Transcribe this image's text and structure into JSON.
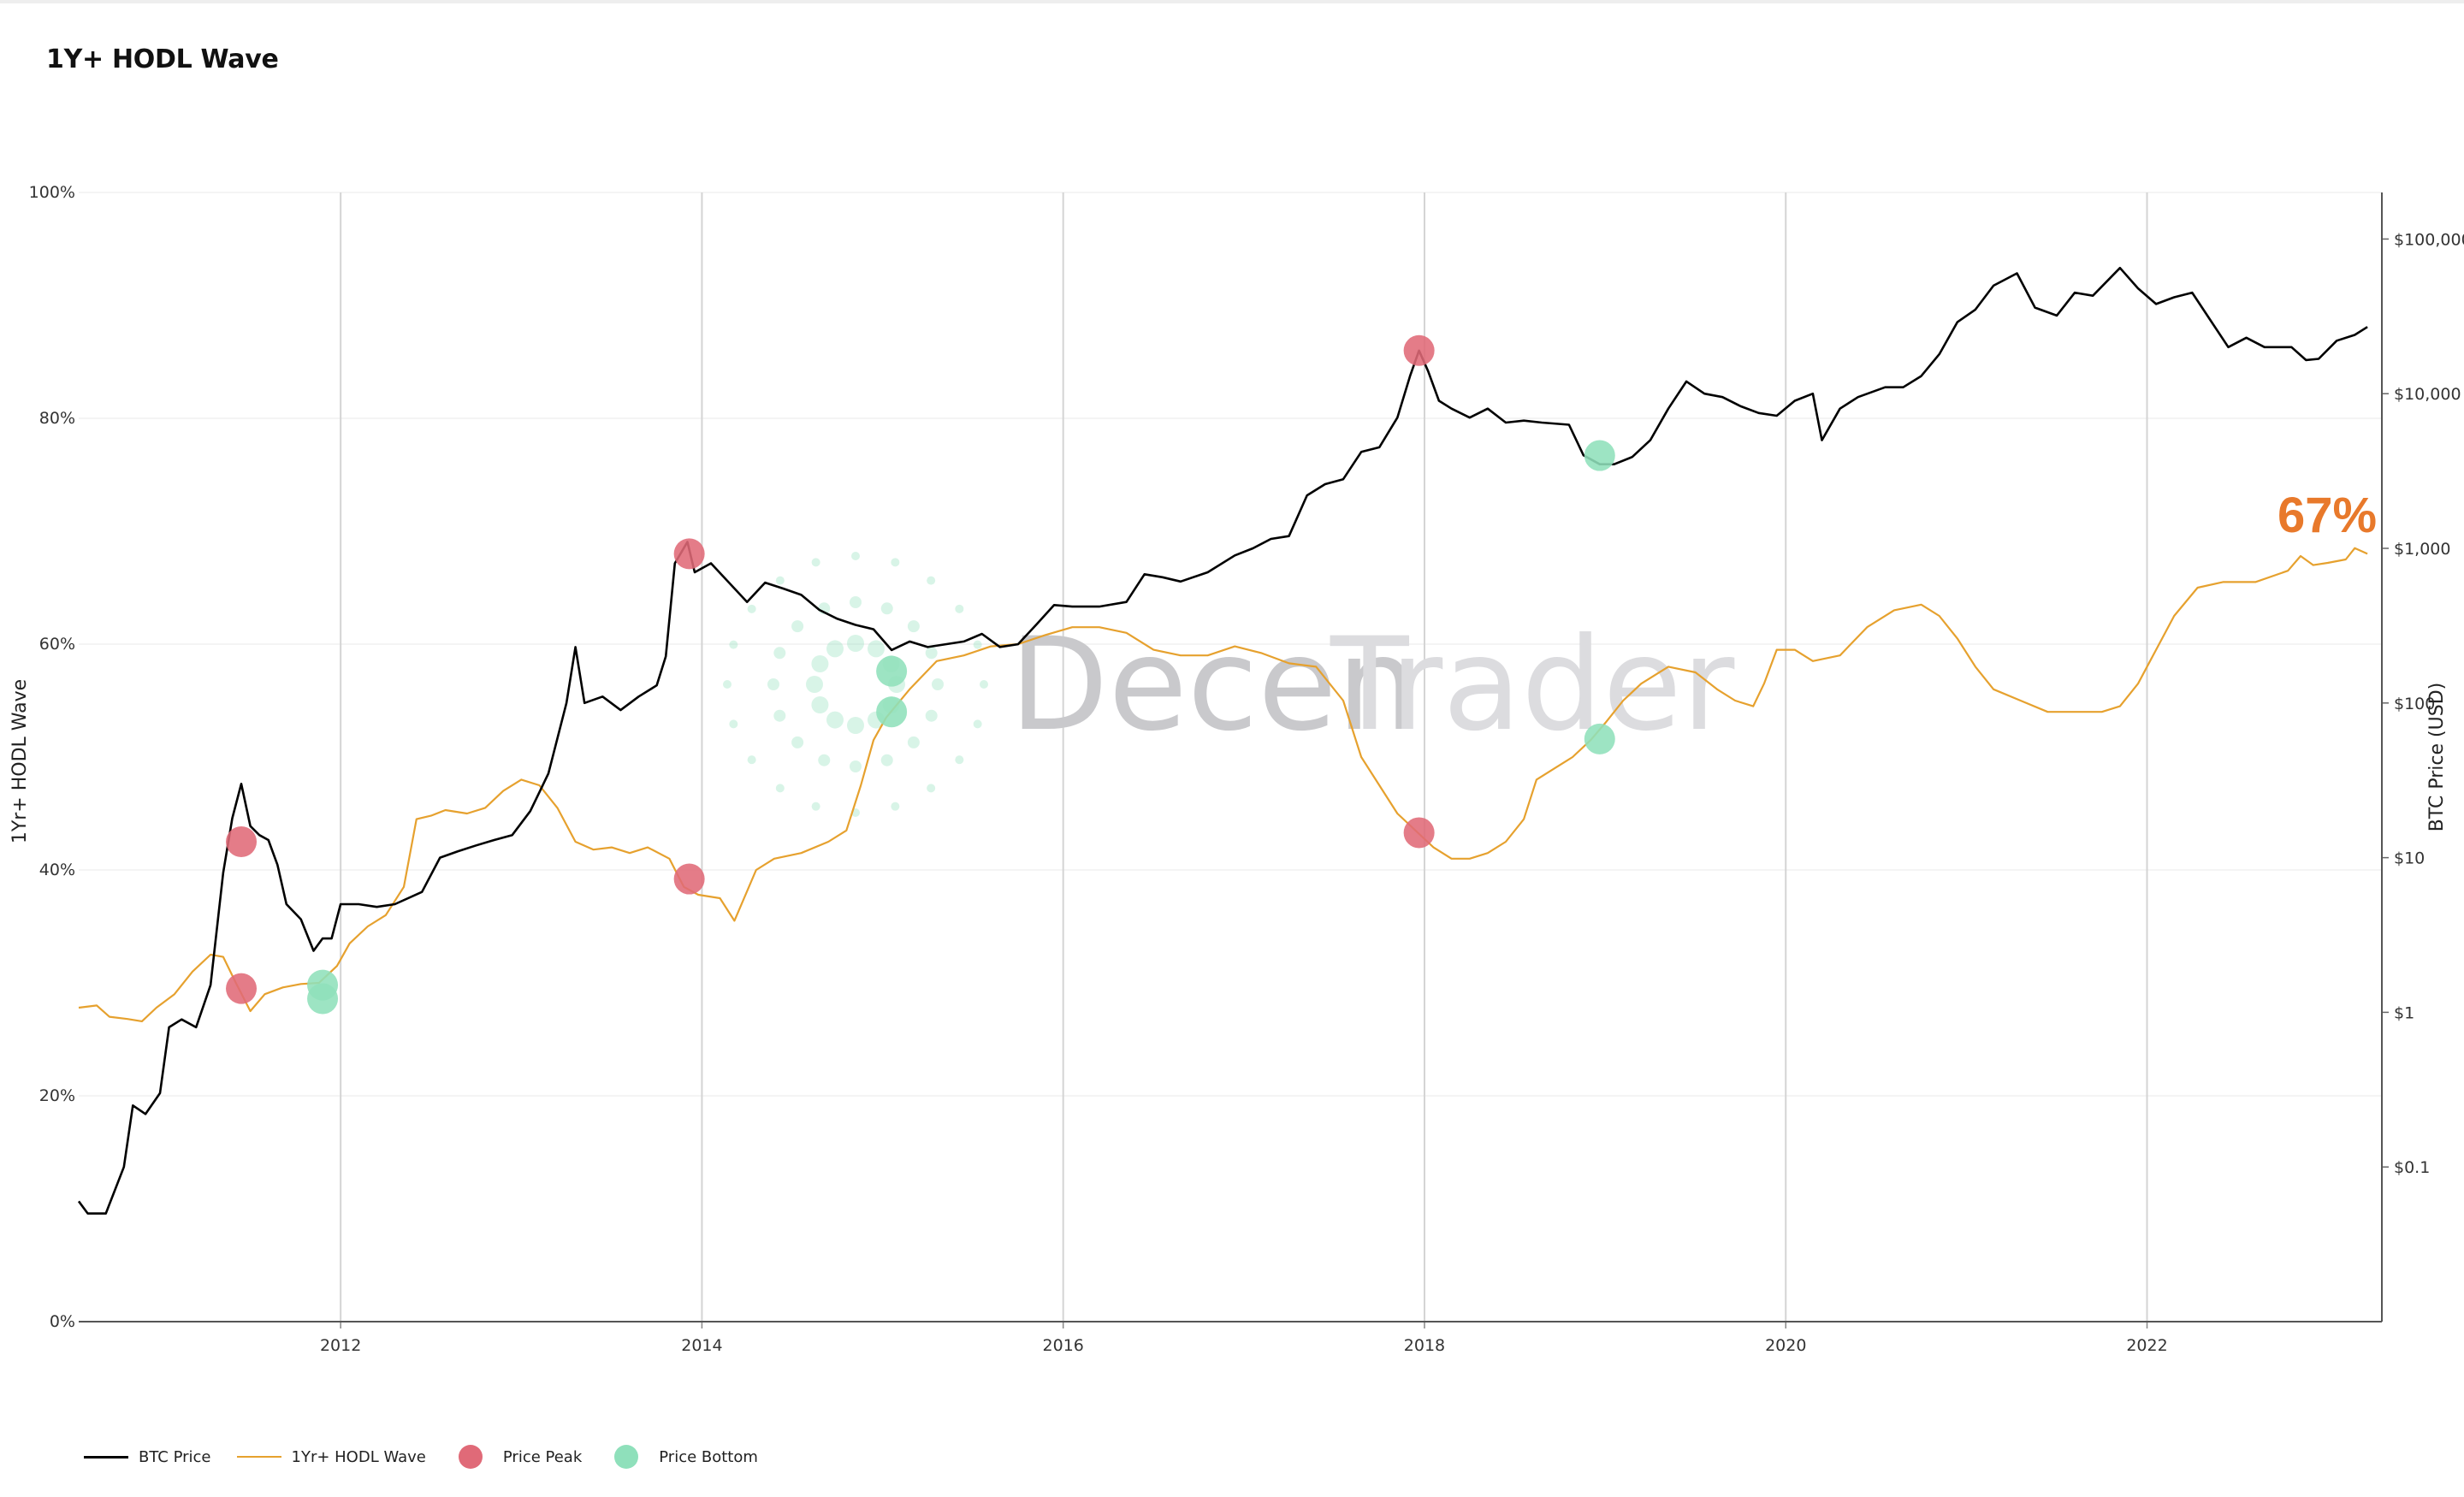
{
  "title": "1Y+ HODL Wave",
  "legend": [
    {
      "label": "BTC Price",
      "kind": "line",
      "color": "#000000"
    },
    {
      "label": "1Yr+ HODL Wave",
      "kind": "line",
      "color": "#e6a12e"
    },
    {
      "label": "Price Peak",
      "kind": "dot",
      "color": "#e06a78"
    },
    {
      "label": "Price Bottom",
      "kind": "dot",
      "color": "#8fe0bb"
    }
  ],
  "watermark": {
    "part1": "Decen",
    "part2": "Trader",
    "dot_color": "#8fe0bb"
  },
  "annotation": {
    "text": "67%",
    "color": "#e8792b"
  },
  "chart_data": {
    "type": "line",
    "title": "1Y+ HODL Wave",
    "xlabel": "",
    "ylabel_left": "1Yr+ HODL Wave",
    "ylabel_right": "BTC Price (USD)",
    "x_range": [
      2010.55,
      2023.3
    ],
    "x_ticks": [
      2012,
      2014,
      2016,
      2018,
      2020,
      2022
    ],
    "x_tick_labels": [
      "2012",
      "2014",
      "2016",
      "2018",
      "2020",
      "2022"
    ],
    "left_axis": {
      "range": [
        0,
        100
      ],
      "ticks": [
        0,
        20,
        40,
        60,
        80,
        100
      ],
      "tick_labels": [
        "0%",
        "20%",
        "40%",
        "60%",
        "80%",
        "100%"
      ]
    },
    "right_axis": {
      "scale": "log",
      "range": [
        0.01,
        200000
      ],
      "ticks": [
        0.1,
        1,
        10,
        100,
        1000,
        10000,
        100000
      ],
      "tick_labels": [
        "$0.1",
        "$1",
        "$10",
        "$100",
        "$1,000",
        "$10,000",
        "$100,000"
      ]
    },
    "grid": {
      "vertical": true,
      "horizontal": true
    },
    "legend_position": "bottom-left",
    "series": [
      {
        "name": "BTC Price",
        "axis": "right",
        "color": "#000000",
        "points": [
          [
            2010.55,
            0.06
          ],
          [
            2010.6,
            0.05
          ],
          [
            2010.7,
            0.05
          ],
          [
            2010.8,
            0.1
          ],
          [
            2010.85,
            0.25
          ],
          [
            2010.92,
            0.22
          ],
          [
            2011.0,
            0.3
          ],
          [
            2011.05,
            0.8
          ],
          [
            2011.12,
            0.9
          ],
          [
            2011.2,
            0.8
          ],
          [
            2011.28,
            1.5
          ],
          [
            2011.35,
            8
          ],
          [
            2011.4,
            18
          ],
          [
            2011.45,
            30
          ],
          [
            2011.5,
            16
          ],
          [
            2011.55,
            14
          ],
          [
            2011.6,
            13
          ],
          [
            2011.65,
            9
          ],
          [
            2011.7,
            5
          ],
          [
            2011.78,
            4
          ],
          [
            2011.85,
            2.5
          ],
          [
            2011.9,
            3
          ],
          [
            2011.95,
            3
          ],
          [
            2012.0,
            5
          ],
          [
            2012.1,
            5
          ],
          [
            2012.2,
            4.8
          ],
          [
            2012.3,
            5
          ],
          [
            2012.45,
            6
          ],
          [
            2012.55,
            10
          ],
          [
            2012.65,
            11
          ],
          [
            2012.75,
            12
          ],
          [
            2012.85,
            13
          ],
          [
            2012.95,
            14
          ],
          [
            2013.05,
            20
          ],
          [
            2013.15,
            35
          ],
          [
            2013.25,
            100
          ],
          [
            2013.3,
            230
          ],
          [
            2013.35,
            100
          ],
          [
            2013.45,
            110
          ],
          [
            2013.55,
            90
          ],
          [
            2013.65,
            110
          ],
          [
            2013.75,
            130
          ],
          [
            2013.8,
            200
          ],
          [
            2013.85,
            800
          ],
          [
            2013.92,
            1100
          ],
          [
            2013.96,
            700
          ],
          [
            2014.05,
            800
          ],
          [
            2014.15,
            600
          ],
          [
            2014.25,
            450
          ],
          [
            2014.35,
            600
          ],
          [
            2014.45,
            550
          ],
          [
            2014.55,
            500
          ],
          [
            2014.65,
            400
          ],
          [
            2014.75,
            350
          ],
          [
            2014.85,
            320
          ],
          [
            2014.95,
            300
          ],
          [
            2015.05,
            220
          ],
          [
            2015.15,
            250
          ],
          [
            2015.25,
            230
          ],
          [
            2015.35,
            240
          ],
          [
            2015.45,
            250
          ],
          [
            2015.55,
            280
          ],
          [
            2015.65,
            230
          ],
          [
            2015.75,
            240
          ],
          [
            2015.85,
            320
          ],
          [
            2015.95,
            430
          ],
          [
            2016.05,
            420
          ],
          [
            2016.2,
            420
          ],
          [
            2016.35,
            450
          ],
          [
            2016.45,
            680
          ],
          [
            2016.55,
            650
          ],
          [
            2016.65,
            610
          ],
          [
            2016.8,
            700
          ],
          [
            2016.95,
            900
          ],
          [
            2017.05,
            1000
          ],
          [
            2017.15,
            1150
          ],
          [
            2017.25,
            1200
          ],
          [
            2017.35,
            2200
          ],
          [
            2017.45,
            2600
          ],
          [
            2017.55,
            2800
          ],
          [
            2017.65,
            4200
          ],
          [
            2017.75,
            4500
          ],
          [
            2017.85,
            7000
          ],
          [
            2017.92,
            13000
          ],
          [
            2017.97,
            19000
          ],
          [
            2018.02,
            14000
          ],
          [
            2018.08,
            9000
          ],
          [
            2018.15,
            8000
          ],
          [
            2018.25,
            7000
          ],
          [
            2018.35,
            8000
          ],
          [
            2018.45,
            6500
          ],
          [
            2018.55,
            6700
          ],
          [
            2018.65,
            6500
          ],
          [
            2018.8,
            6300
          ],
          [
            2018.88,
            4000
          ],
          [
            2018.97,
            3500
          ],
          [
            2019.05,
            3500
          ],
          [
            2019.15,
            3900
          ],
          [
            2019.25,
            5000
          ],
          [
            2019.35,
            8000
          ],
          [
            2019.45,
            12000
          ],
          [
            2019.55,
            10000
          ],
          [
            2019.65,
            9500
          ],
          [
            2019.75,
            8300
          ],
          [
            2019.85,
            7500
          ],
          [
            2019.95,
            7200
          ],
          [
            2020.05,
            9000
          ],
          [
            2020.15,
            10000
          ],
          [
            2020.2,
            5000
          ],
          [
            2020.3,
            8000
          ],
          [
            2020.4,
            9500
          ],
          [
            2020.55,
            11000
          ],
          [
            2020.65,
            11000
          ],
          [
            2020.75,
            13000
          ],
          [
            2020.85,
            18000
          ],
          [
            2020.95,
            29000
          ],
          [
            2021.05,
            35000
          ],
          [
            2021.15,
            50000
          ],
          [
            2021.28,
            60000
          ],
          [
            2021.38,
            36000
          ],
          [
            2021.5,
            32000
          ],
          [
            2021.6,
            45000
          ],
          [
            2021.7,
            43000
          ],
          [
            2021.85,
            65000
          ],
          [
            2021.95,
            48000
          ],
          [
            2022.05,
            38000
          ],
          [
            2022.15,
            42000
          ],
          [
            2022.25,
            45000
          ],
          [
            2022.35,
            30000
          ],
          [
            2022.45,
            20000
          ],
          [
            2022.55,
            23000
          ],
          [
            2022.65,
            20000
          ],
          [
            2022.8,
            20000
          ],
          [
            2022.88,
            16500
          ],
          [
            2022.95,
            16800
          ],
          [
            2023.05,
            22000
          ],
          [
            2023.15,
            24000
          ],
          [
            2023.22,
            27000
          ]
        ]
      },
      {
        "name": "1Yr+ HODL Wave",
        "axis": "left",
        "color": "#e6a12e",
        "points": [
          [
            2010.55,
            27.8
          ],
          [
            2010.65,
            28.0
          ],
          [
            2010.72,
            27.0
          ],
          [
            2010.82,
            26.8
          ],
          [
            2010.9,
            26.6
          ],
          [
            2010.98,
            27.8
          ],
          [
            2011.08,
            29.0
          ],
          [
            2011.18,
            31.0
          ],
          [
            2011.28,
            32.5
          ],
          [
            2011.35,
            32.3
          ],
          [
            2011.42,
            30.0
          ],
          [
            2011.5,
            27.5
          ],
          [
            2011.58,
            29.0
          ],
          [
            2011.68,
            29.6
          ],
          [
            2011.78,
            29.9
          ],
          [
            2011.88,
            30.0
          ],
          [
            2011.98,
            31.5
          ],
          [
            2012.05,
            33.5
          ],
          [
            2012.15,
            35.0
          ],
          [
            2012.25,
            36.0
          ],
          [
            2012.35,
            38.5
          ],
          [
            2012.42,
            44.5
          ],
          [
            2012.5,
            44.8
          ],
          [
            2012.58,
            45.3
          ],
          [
            2012.7,
            45.0
          ],
          [
            2012.8,
            45.5
          ],
          [
            2012.9,
            47.0
          ],
          [
            2013.0,
            48.0
          ],
          [
            2013.1,
            47.5
          ],
          [
            2013.2,
            45.5
          ],
          [
            2013.3,
            42.5
          ],
          [
            2013.4,
            41.8
          ],
          [
            2013.5,
            42.0
          ],
          [
            2013.6,
            41.5
          ],
          [
            2013.7,
            42.0
          ],
          [
            2013.82,
            41.0
          ],
          [
            2013.9,
            38.5
          ],
          [
            2013.98,
            37.8
          ],
          [
            2014.1,
            37.5
          ],
          [
            2014.18,
            35.5
          ],
          [
            2014.22,
            37.0
          ],
          [
            2014.3,
            40.0
          ],
          [
            2014.4,
            41.0
          ],
          [
            2014.55,
            41.5
          ],
          [
            2014.7,
            42.5
          ],
          [
            2014.8,
            43.5
          ],
          [
            2014.88,
            47.5
          ],
          [
            2014.95,
            51.5
          ],
          [
            2015.02,
            53.5
          ],
          [
            2015.15,
            56.0
          ],
          [
            2015.3,
            58.5
          ],
          [
            2015.45,
            59.0
          ],
          [
            2015.6,
            59.8
          ],
          [
            2015.75,
            60.0
          ],
          [
            2015.9,
            60.8
          ],
          [
            2016.05,
            61.5
          ],
          [
            2016.2,
            61.5
          ],
          [
            2016.35,
            61.0
          ],
          [
            2016.5,
            59.5
          ],
          [
            2016.65,
            59.0
          ],
          [
            2016.8,
            59.0
          ],
          [
            2016.95,
            59.8
          ],
          [
            2017.1,
            59.2
          ],
          [
            2017.25,
            58.3
          ],
          [
            2017.4,
            58.0
          ],
          [
            2017.55,
            55.0
          ],
          [
            2017.65,
            50.0
          ],
          [
            2017.75,
            47.5
          ],
          [
            2017.85,
            45.0
          ],
          [
            2017.95,
            43.5
          ],
          [
            2018.05,
            42.0
          ],
          [
            2018.15,
            41.0
          ],
          [
            2018.25,
            41.0
          ],
          [
            2018.35,
            41.5
          ],
          [
            2018.45,
            42.5
          ],
          [
            2018.55,
            44.5
          ],
          [
            2018.62,
            48.0
          ],
          [
            2018.72,
            49.0
          ],
          [
            2018.82,
            50.0
          ],
          [
            2018.92,
            51.5
          ],
          [
            2019.0,
            53.0
          ],
          [
            2019.1,
            55.0
          ],
          [
            2019.2,
            56.5
          ],
          [
            2019.35,
            58.0
          ],
          [
            2019.5,
            57.5
          ],
          [
            2019.62,
            56.0
          ],
          [
            2019.72,
            55.0
          ],
          [
            2019.82,
            54.5
          ],
          [
            2019.88,
            56.5
          ],
          [
            2019.95,
            59.5
          ],
          [
            2020.05,
            59.5
          ],
          [
            2020.15,
            58.5
          ],
          [
            2020.3,
            59.0
          ],
          [
            2020.45,
            61.5
          ],
          [
            2020.6,
            63.0
          ],
          [
            2020.75,
            63.5
          ],
          [
            2020.85,
            62.5
          ],
          [
            2020.95,
            60.5
          ],
          [
            2021.05,
            58.0
          ],
          [
            2021.15,
            56.0
          ],
          [
            2021.3,
            55.0
          ],
          [
            2021.45,
            54.0
          ],
          [
            2021.6,
            54.0
          ],
          [
            2021.75,
            54.0
          ],
          [
            2021.85,
            54.5
          ],
          [
            2021.95,
            56.5
          ],
          [
            2022.05,
            59.5
          ],
          [
            2022.15,
            62.5
          ],
          [
            2022.28,
            65.0
          ],
          [
            2022.42,
            65.5
          ],
          [
            2022.6,
            65.5
          ],
          [
            2022.78,
            66.5
          ],
          [
            2022.85,
            67.8
          ],
          [
            2022.92,
            67.0
          ],
          [
            2023.0,
            67.2
          ],
          [
            2023.1,
            67.5
          ],
          [
            2023.15,
            68.5
          ],
          [
            2023.22,
            68.0
          ]
        ]
      }
    ],
    "markers": {
      "price_peak": [
        {
          "x": 2011.45,
          "y": 42.5
        },
        {
          "x": 2011.45,
          "y": 29.5
        },
        {
          "x": 2013.93,
          "y": 68.0
        },
        {
          "x": 2013.93,
          "y": 39.2
        },
        {
          "x": 2017.97,
          "y": 86.0
        },
        {
          "x": 2017.97,
          "y": 43.3
        }
      ],
      "price_bottom": [
        {
          "x": 2011.9,
          "y": 29.8
        },
        {
          "x": 2011.9,
          "y": 28.6
        },
        {
          "x": 2015.05,
          "y": 57.6
        },
        {
          "x": 2015.05,
          "y": 54.0
        },
        {
          "x": 2018.97,
          "y": 76.7
        },
        {
          "x": 2018.97,
          "y": 51.6
        }
      ]
    }
  }
}
